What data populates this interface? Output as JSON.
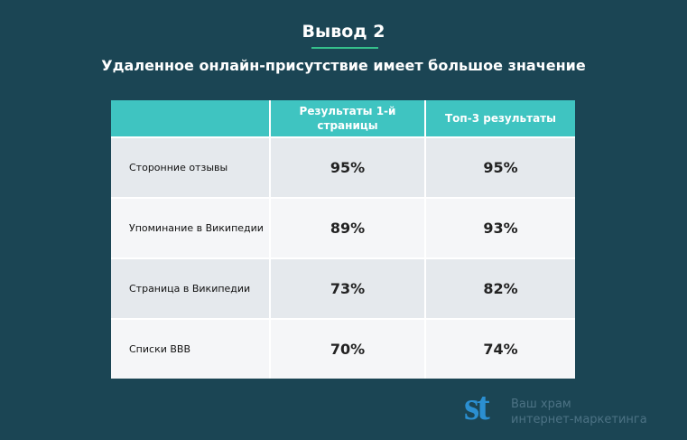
{
  "header": {
    "title": "Вывод 2",
    "subtitle": "Удаленное онлайн-присутствие имеет большое значение"
  },
  "table": {
    "columns": [
      "",
      "Результаты 1-й страницы",
      "Топ-3 результаты"
    ],
    "rows": [
      [
        "Сторонние отзывы",
        "95%",
        "95%"
      ],
      [
        "Упоминание в Википедии",
        "89%",
        "93%"
      ],
      [
        "Страница в Википедии",
        "73%",
        "82%"
      ],
      [
        "Списки BBB",
        "70%",
        "74%"
      ]
    ]
  },
  "logo": {
    "mark": "st",
    "line1": "Ваш храм",
    "line2": "интернет-маркетинга"
  }
}
